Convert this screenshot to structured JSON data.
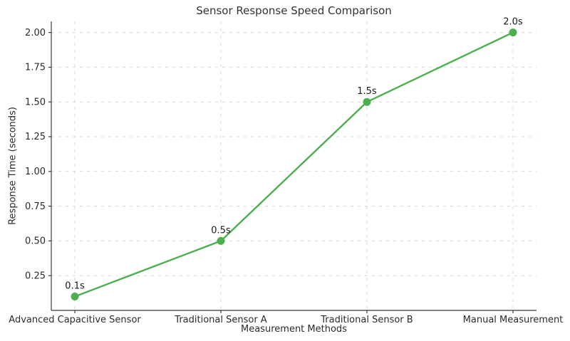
{
  "chart_data": {
    "type": "line",
    "title": "Sensor Response Speed Comparison",
    "xlabel": "Measurement Methods",
    "ylabel": "Response Time (seconds)",
    "categories": [
      "Advanced Capacitive Sensor",
      "Traditional Sensor A",
      "Traditional Sensor B",
      "Manual Measurement"
    ],
    "series": [
      {
        "name": "Response Time",
        "values": [
          0.1,
          0.5,
          1.5,
          2.0
        ],
        "point_labels": [
          "0.1s",
          "0.5s",
          "1.5s",
          "2.0s"
        ],
        "color": "#4CAF50",
        "marker": "circle"
      }
    ],
    "yticks": [
      {
        "value": 0.25,
        "label": "0.25"
      },
      {
        "value": 0.5,
        "label": "0.50"
      },
      {
        "value": 0.75,
        "label": "0.75"
      },
      {
        "value": 1.0,
        "label": "1.00"
      },
      {
        "value": 1.25,
        "label": "1.25"
      },
      {
        "value": 1.5,
        "label": "1.50"
      },
      {
        "value": 1.75,
        "label": "1.75"
      },
      {
        "value": 2.0,
        "label": "2.00"
      }
    ],
    "ylim": [
      0,
      2.08
    ],
    "grid": {
      "visible": true,
      "style": "dashed",
      "color": "#d9d9d9"
    },
    "legend": "none",
    "spines": [
      "left",
      "bottom"
    ],
    "axis_color": "#3b3b3b",
    "text_color": "#2b2b2b",
    "background_color": "#ffffff"
  }
}
